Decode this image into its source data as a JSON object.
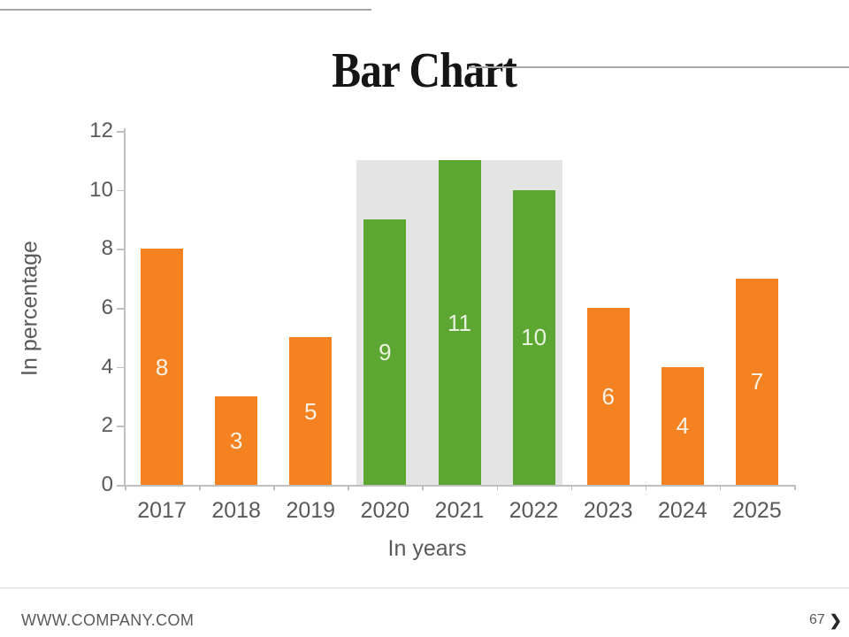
{
  "slide": {
    "title": "Bar Chart",
    "footer": {
      "website": "WWW.COMPANY.COM",
      "page_number": "67",
      "chevron_icon": "❯"
    }
  },
  "chart_data": {
    "type": "bar",
    "title": "",
    "categories": [
      "2017",
      "2018",
      "2019",
      "2020",
      "2021",
      "2022",
      "2023",
      "2024",
      "2025"
    ],
    "values": [
      8,
      3,
      5,
      9,
      11,
      10,
      6,
      4,
      7
    ],
    "xlabel": "In years",
    "ylabel": "In percentage",
    "ylim": [
      0,
      12
    ],
    "yticks": [
      0,
      2,
      4,
      6,
      8,
      10,
      12
    ],
    "grid": false,
    "legend": false,
    "data_labels": "centered inside bars",
    "highlight": {
      "categories": [
        "2020",
        "2021",
        "2022"
      ],
      "band_top_value": 11,
      "band_color": "#e4e4e4"
    },
    "colors": {
      "default_bar": "#f58220",
      "highlight_bar": "#5ca632",
      "label_on_default": "#fbf3e7",
      "label_on_highlight": "#e9f3df",
      "axis_line": "#bfbfbf",
      "tick_label": "#595959"
    }
  }
}
